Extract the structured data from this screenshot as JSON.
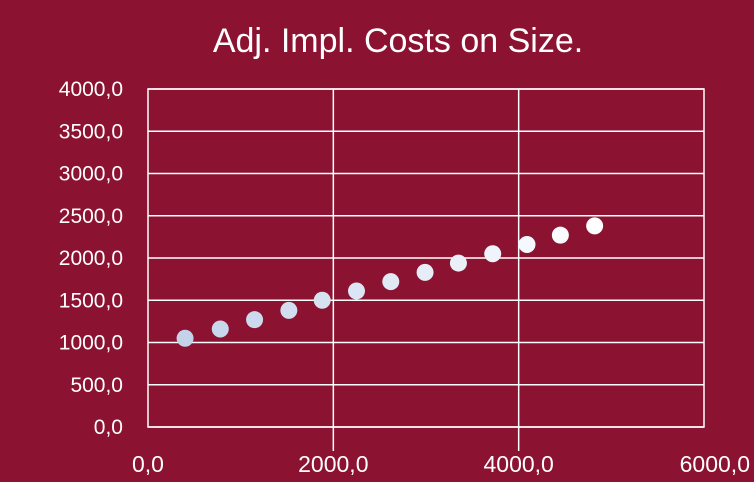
{
  "chart_data": {
    "type": "scatter",
    "title": "Adj. Impl. Costs on Size.",
    "xlabel": "",
    "ylabel": "",
    "xlim": [
      0,
      6000
    ],
    "ylim": [
      0,
      4000
    ],
    "x_ticks": [
      0,
      2000,
      4000,
      6000
    ],
    "x_tick_labels": [
      "0,0",
      "2000,0",
      "4000,0",
      "6000,0"
    ],
    "y_ticks": [
      0,
      500,
      1000,
      1500,
      2000,
      2500,
      3000,
      3500,
      4000
    ],
    "y_tick_labels": [
      "0,0",
      "500,0",
      "1000,0",
      "1500,0",
      "2000,0",
      "2500,0",
      "3000,0",
      "3500,0",
      "4000,0"
    ],
    "grid": "vertical-major",
    "legend": "none",
    "series": [
      {
        "points": [
          {
            "x": 400,
            "y": 1050
          },
          {
            "x": 780,
            "y": 1160
          },
          {
            "x": 1150,
            "y": 1270
          },
          {
            "x": 1520,
            "y": 1380
          },
          {
            "x": 1880,
            "y": 1500
          },
          {
            "x": 2250,
            "y": 1610
          },
          {
            "x": 2620,
            "y": 1720
          },
          {
            "x": 2990,
            "y": 1830
          },
          {
            "x": 3350,
            "y": 1940
          },
          {
            "x": 3720,
            "y": 2050
          },
          {
            "x": 4090,
            "y": 2160
          },
          {
            "x": 4450,
            "y": 2270
          },
          {
            "x": 4820,
            "y": 2380
          }
        ]
      }
    ],
    "colors": {
      "background": "#8b1230",
      "marker_start": "#c3d3ea",
      "marker_end": "#ffffff",
      "grid": "#ffffff",
      "text": "#ffffff"
    }
  }
}
